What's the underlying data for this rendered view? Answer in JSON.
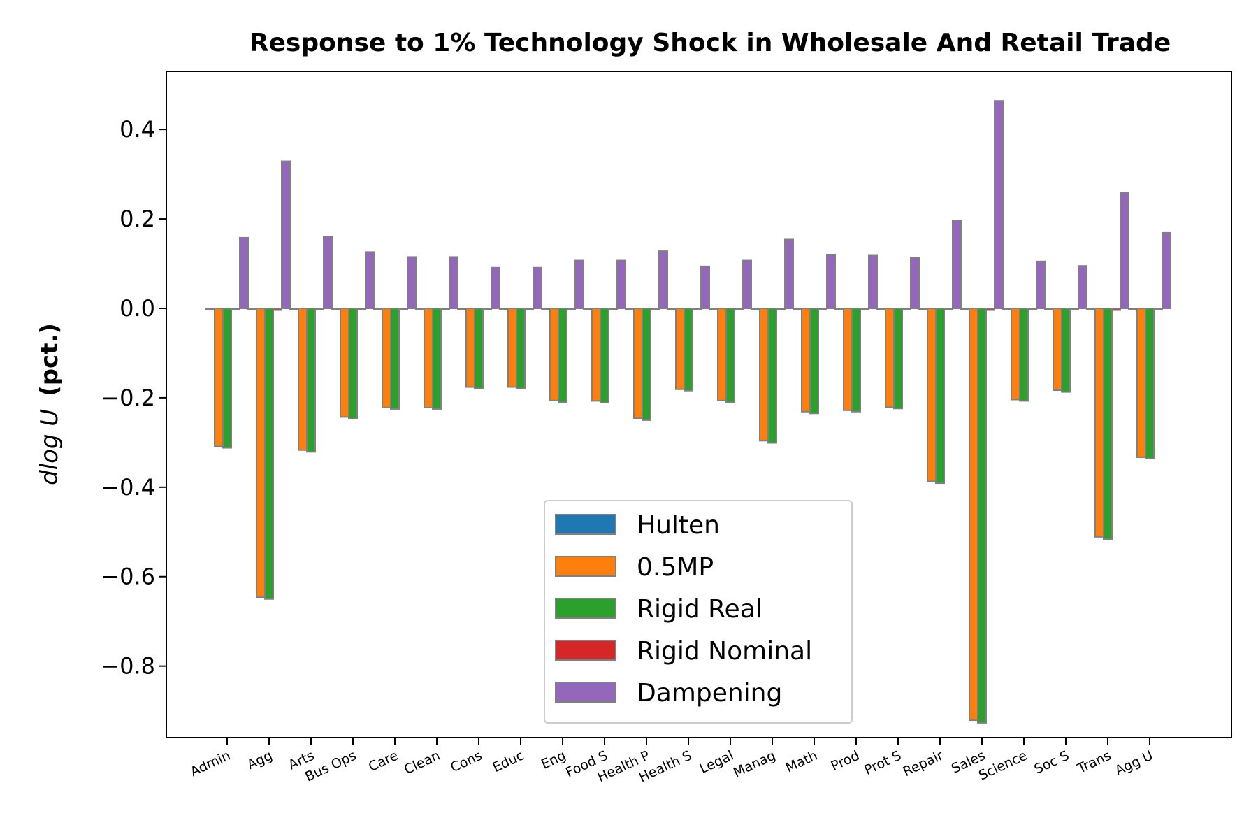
{
  "chart_data": {
    "type": "bar",
    "title": "Response to 1% Technology Shock in Wholesale And Retail Trade",
    "ylabel_math": "dlog U",
    "ylabel_text": "(pct.)",
    "ylim": [
      -0.96,
      0.53
    ],
    "yticks": [
      0.4,
      0.2,
      0.0,
      -0.2,
      -0.4,
      -0.6,
      -0.8
    ],
    "ytick_labels": [
      "0.4",
      "0.2",
      "0.0",
      "−0.2",
      "−0.4",
      "−0.6",
      "−0.8"
    ],
    "grid": false,
    "legend_position": "lower-center",
    "bar_edge_color": "#808080",
    "categories": [
      "Admin",
      "Agg",
      "Arts",
      "Bus Ops",
      "Care",
      "Clean",
      "Cons",
      "Educ",
      "Eng",
      "Food S",
      "Health P",
      "Health S",
      "Legal",
      "Manag",
      "Math",
      "Prod",
      "Prot S",
      "Repair",
      "Sales",
      "Science",
      "Soc S",
      "Trans",
      "Agg U"
    ],
    "series": [
      {
        "name": "Hulten",
        "color": "#1f77b4",
        "values": [
          0,
          0,
          0,
          0,
          0,
          0,
          0,
          0,
          0,
          0,
          0,
          0,
          0,
          0,
          0,
          0,
          0,
          0,
          0,
          0,
          0,
          0,
          0
        ]
      },
      {
        "name": "0.5MP",
        "color": "#ff7f0e",
        "values": [
          -0.309,
          -0.646,
          -0.317,
          -0.243,
          -0.222,
          -0.222,
          -0.176,
          -0.176,
          -0.206,
          -0.207,
          -0.246,
          -0.181,
          -0.206,
          -0.296,
          -0.231,
          -0.228,
          -0.221,
          -0.387,
          -0.921,
          -0.204,
          -0.183,
          -0.511,
          -0.333
        ]
      },
      {
        "name": "Rigid Real",
        "color": "#2ca02c",
        "values": [
          -0.312,
          -0.65,
          -0.321,
          -0.247,
          -0.225,
          -0.225,
          -0.179,
          -0.179,
          -0.21,
          -0.211,
          -0.25,
          -0.184,
          -0.21,
          -0.301,
          -0.235,
          -0.231,
          -0.224,
          -0.391,
          -0.927,
          -0.207,
          -0.187,
          -0.516,
          -0.336
        ]
      },
      {
        "name": "Rigid Nominal",
        "color": "#d62728",
        "values": [
          -0.003,
          -0.004,
          -0.003,
          -0.003,
          -0.003,
          -0.003,
          -0.003,
          -0.003,
          -0.003,
          -0.003,
          -0.003,
          -0.003,
          -0.003,
          -0.003,
          -0.003,
          -0.003,
          -0.003,
          -0.003,
          -0.004,
          -0.003,
          -0.003,
          -0.004,
          -0.003
        ]
      },
      {
        "name": "Dampening",
        "color": "#9467bd",
        "values": [
          0.158,
          0.329,
          0.161,
          0.126,
          0.115,
          0.115,
          0.091,
          0.091,
          0.107,
          0.107,
          0.128,
          0.094,
          0.107,
          0.154,
          0.12,
          0.118,
          0.113,
          0.197,
          0.464,
          0.105,
          0.095,
          0.259,
          0.169
        ]
      }
    ]
  }
}
